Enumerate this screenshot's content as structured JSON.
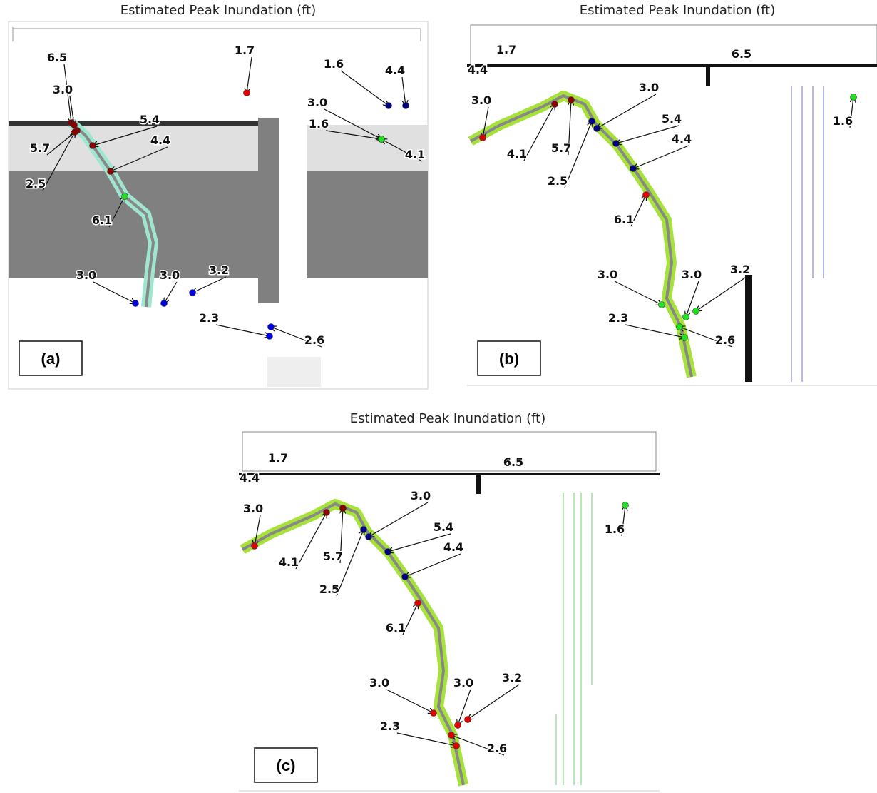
{
  "panels": [
    {
      "title": "Estimated Peak Inundation (ft)",
      "tag": "(a)",
      "labels": [
        {
          "text": "6.5",
          "color": "#8b0000"
        },
        {
          "text": "3.0",
          "color": "#8b0000"
        },
        {
          "text": "1.7",
          "color": "#e00000"
        },
        {
          "text": "1.6",
          "color": "#000080"
        },
        {
          "text": "4.4",
          "color": "#000080"
        },
        {
          "text": "3.0",
          "color": "#000080"
        },
        {
          "text": "1.6",
          "color": "#20e020"
        },
        {
          "text": "4.1",
          "color": "#20e020"
        },
        {
          "text": "5.4",
          "color": "#8b0000"
        },
        {
          "text": "5.7",
          "color": "#8b0000"
        },
        {
          "text": "4.4",
          "color": "#8b0000"
        },
        {
          "text": "2.5",
          "color": "#8b0000"
        },
        {
          "text": "6.1",
          "color": "#20e020"
        },
        {
          "text": "3.0",
          "color": "#0000e0"
        },
        {
          "text": "3.0",
          "color": "#0000e0"
        },
        {
          "text": "3.2",
          "color": "#0000e0"
        },
        {
          "text": "2.3",
          "color": "#0000e0"
        },
        {
          "text": "2.6",
          "color": "#0000e0"
        }
      ]
    },
    {
      "title": "Estimated Peak Inundation (ft)",
      "tag": "(b)",
      "labels": [
        {
          "text": "1.7",
          "color": "#e00000"
        },
        {
          "text": "4.4",
          "color": "#e00000"
        },
        {
          "text": "3.0",
          "color": "#e00000"
        },
        {
          "text": "6.5",
          "color": "#e00000"
        },
        {
          "text": "1.6",
          "color": "#20e020"
        },
        {
          "text": "4.1",
          "color": "#8b0000"
        },
        {
          "text": "5.7",
          "color": "#8b0000"
        },
        {
          "text": "2.5",
          "color": "#000080"
        },
        {
          "text": "3.0",
          "color": "#000080"
        },
        {
          "text": "5.4",
          "color": "#000080"
        },
        {
          "text": "4.4",
          "color": "#000080"
        },
        {
          "text": "6.1",
          "color": "#e00000"
        },
        {
          "text": "3.0",
          "color": "#20e020"
        },
        {
          "text": "3.0",
          "color": "#20e020"
        },
        {
          "text": "3.2",
          "color": "#20e020"
        },
        {
          "text": "2.3",
          "color": "#20e020"
        },
        {
          "text": "2.6",
          "color": "#20e020"
        }
      ]
    },
    {
      "title": "Estimated Peak Inundation (ft)",
      "tag": "(c)",
      "labels": [
        {
          "text": "1.7",
          "color": "#e00000"
        },
        {
          "text": "4.4",
          "color": "#e00000"
        },
        {
          "text": "3.0",
          "color": "#e00000"
        },
        {
          "text": "6.5",
          "color": "#e00000"
        },
        {
          "text": "1.6",
          "color": "#20e020"
        },
        {
          "text": "4.1",
          "color": "#8b0000"
        },
        {
          "text": "5.7",
          "color": "#8b0000"
        },
        {
          "text": "2.5",
          "color": "#000080"
        },
        {
          "text": "3.0",
          "color": "#000080"
        },
        {
          "text": "5.4",
          "color": "#000080"
        },
        {
          "text": "4.4",
          "color": "#000080"
        },
        {
          "text": "6.1",
          "color": "#e00000"
        },
        {
          "text": "3.0",
          "color": "#e00000"
        },
        {
          "text": "3.0",
          "color": "#e00000"
        },
        {
          "text": "3.2",
          "color": "#e00000"
        },
        {
          "text": "2.3",
          "color": "#e00000"
        },
        {
          "text": "2.6",
          "color": "#e00000"
        }
      ]
    }
  ]
}
